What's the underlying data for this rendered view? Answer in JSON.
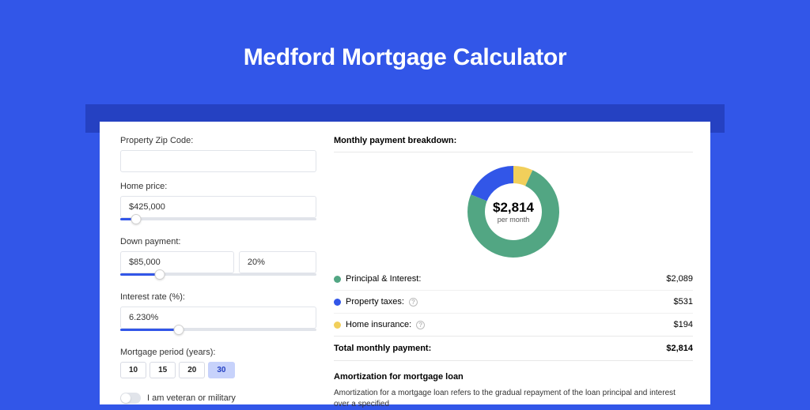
{
  "title": "Medford Mortgage Calculator",
  "colors": {
    "page_bg": "#3256e8",
    "band_bg": "#2541c2",
    "card_bg": "#ffffff",
    "input_border": "#e1e4ea",
    "slider_fill": "#3256e8",
    "pill_active_bg": "#c7d2fb",
    "pill_active_text": "#2541c2"
  },
  "form": {
    "zip": {
      "label": "Property Zip Code:",
      "value": ""
    },
    "home_price": {
      "label": "Home price:",
      "value": "$425,000",
      "slider_pct": 8
    },
    "down_payment": {
      "label": "Down payment:",
      "amount": "$85,000",
      "percent": "20%",
      "slider_pct": 20
    },
    "interest_rate": {
      "label": "Interest rate (%):",
      "value": "6.230%",
      "slider_pct": 30
    },
    "period": {
      "label": "Mortgage period (years):",
      "options": [
        "10",
        "15",
        "20",
        "30"
      ],
      "active": "30"
    },
    "veteran": {
      "label": "I am veteran or military",
      "checked": false
    }
  },
  "breakdown": {
    "title": "Monthly payment breakdown:",
    "donut": {
      "amount": "$2,814",
      "subtitle": "per month",
      "slices": [
        {
          "key": "pi",
          "color": "#52a683",
          "pct": 74.2
        },
        {
          "key": "tax",
          "color": "#3256e8",
          "pct": 18.9
        },
        {
          "key": "ins",
          "color": "#f1cf5b",
          "pct": 6.9
        }
      ]
    },
    "items": [
      {
        "dot": "#52a683",
        "label": "Principal & Interest:",
        "info": false,
        "value": "$2,089"
      },
      {
        "dot": "#3256e8",
        "label": "Property taxes:",
        "info": true,
        "value": "$531"
      },
      {
        "dot": "#f1cf5b",
        "label": "Home insurance:",
        "info": true,
        "value": "$194"
      }
    ],
    "total": {
      "label": "Total monthly payment:",
      "value": "$2,814"
    }
  },
  "amort": {
    "title": "Amortization for mortgage loan",
    "text": "Amortization for a mortgage loan refers to the gradual repayment of the loan principal and interest over a specified"
  }
}
